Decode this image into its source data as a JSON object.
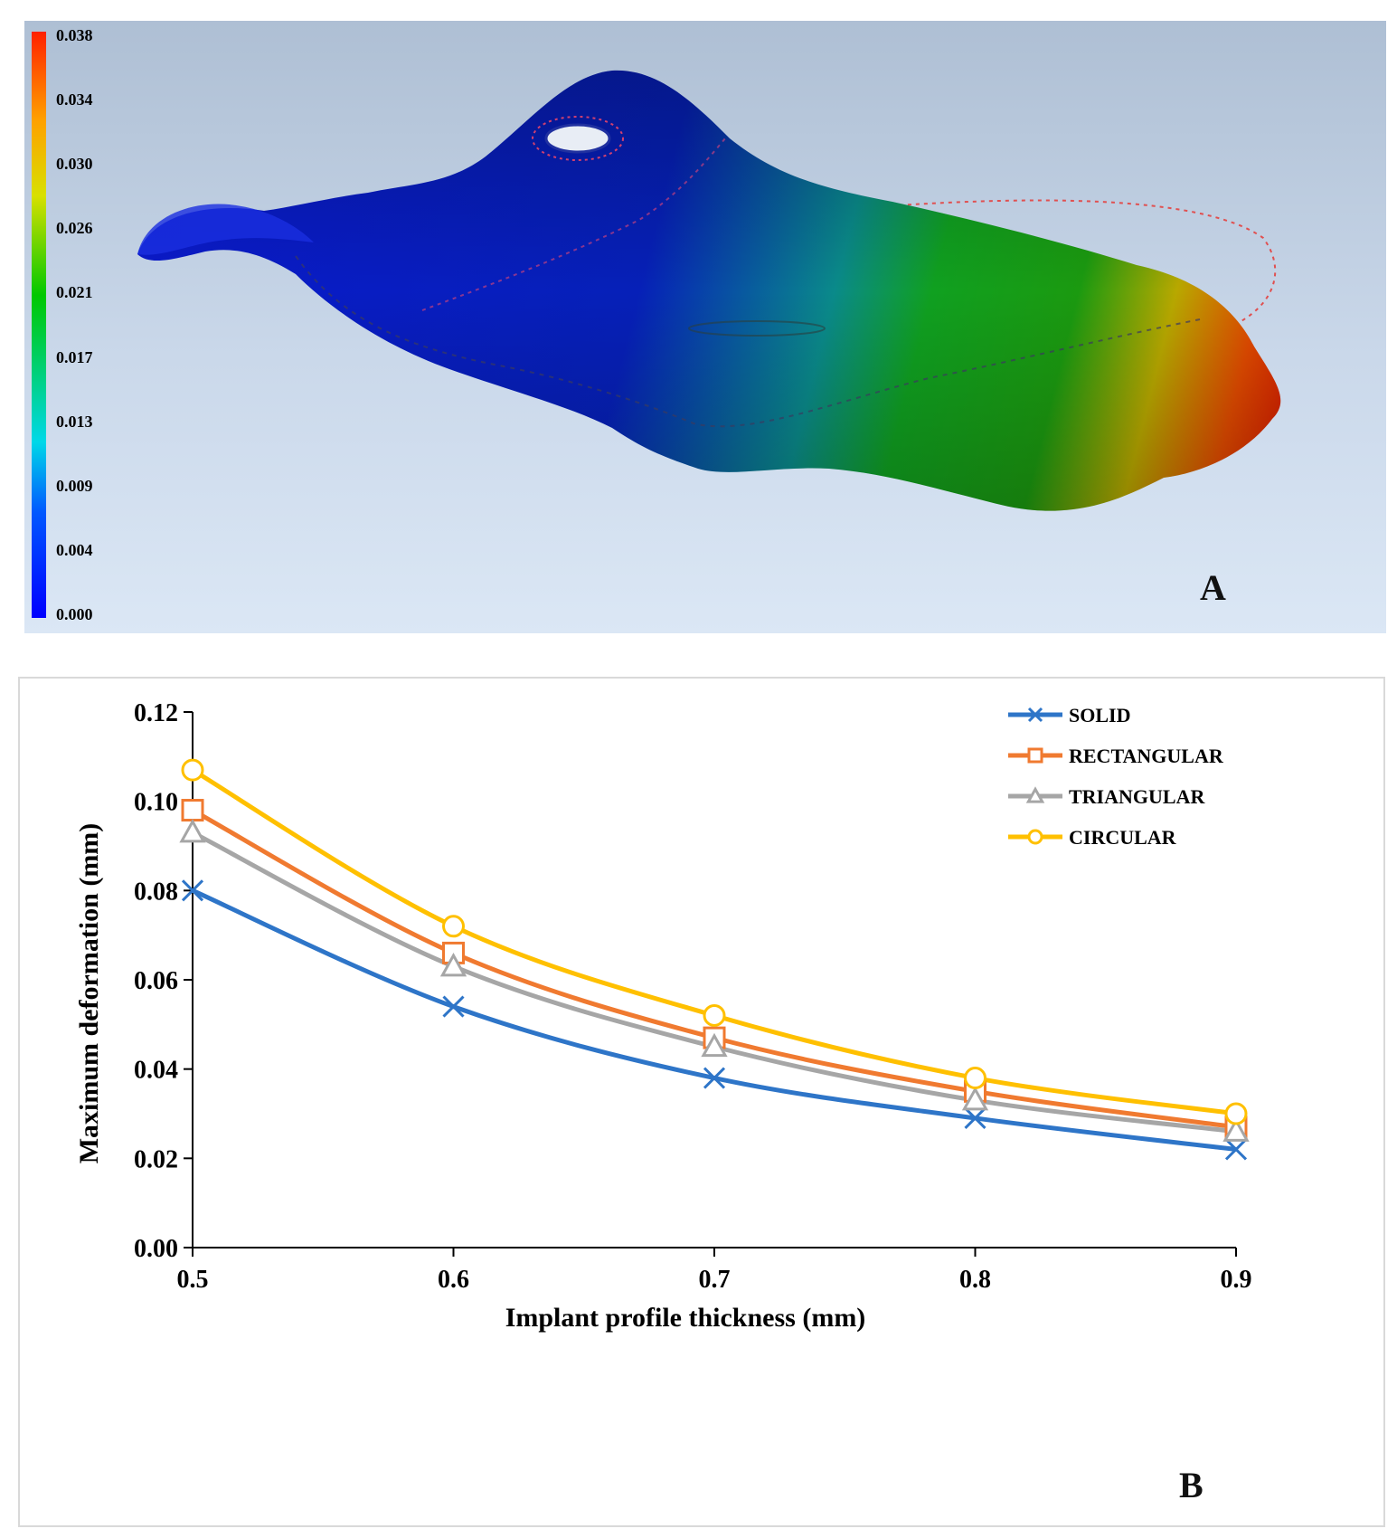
{
  "panel_a": {
    "label": "A",
    "colorbar": {
      "ticks": [
        "0.038",
        "0.034",
        "0.030",
        "0.026",
        "0.021",
        "0.017",
        "0.013",
        "0.009",
        "0.004",
        "0.000"
      ],
      "colors": [
        "#0000ff",
        "#0058ff",
        "#00d8e8",
        "#00c800",
        "#d8e000",
        "#ffa000",
        "#ff2000"
      ]
    }
  },
  "panel_b": {
    "label": "B"
  },
  "chart_data": {
    "type": "line",
    "title": "",
    "xlabel": "Implant profile thickness (mm)",
    "ylabel": "Maximum deformation (mm)",
    "x": [
      0.5,
      0.6,
      0.7,
      0.8,
      0.9
    ],
    "x_ticks": [
      "0.5",
      "0.6",
      "0.7",
      "0.8",
      "0.9"
    ],
    "y_ticks": [
      "0.00",
      "0.02",
      "0.04",
      "0.06",
      "0.08",
      "0.10",
      "0.12"
    ],
    "xlim": [
      0.5,
      0.9
    ],
    "ylim": [
      0,
      0.12
    ],
    "legend_position": "top-right",
    "series": [
      {
        "name": "SOLID",
        "marker": "x",
        "color": "#2e75c8",
        "values": [
          0.08,
          0.054,
          0.038,
          0.029,
          0.022
        ]
      },
      {
        "name": "RECTANGULAR",
        "marker": "square",
        "color": "#f07a30",
        "values": [
          0.098,
          0.066,
          0.047,
          0.035,
          0.027
        ]
      },
      {
        "name": "TRIANGULAR",
        "marker": "triangle",
        "color": "#a6a6a6",
        "values": [
          0.093,
          0.063,
          0.045,
          0.033,
          0.026
        ]
      },
      {
        "name": "CIRCULAR",
        "marker": "circle",
        "color": "#ffc000",
        "values": [
          0.107,
          0.072,
          0.052,
          0.038,
          0.03
        ]
      }
    ]
  }
}
